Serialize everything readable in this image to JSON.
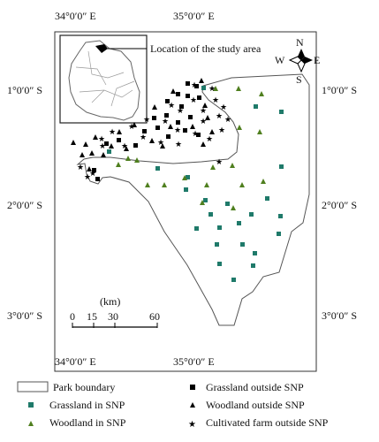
{
  "colors": {
    "grassland_snp": "#1f7a6a",
    "woodland_snp": "#4f7f1f",
    "outside": "#000000",
    "boundary": "#555555"
  },
  "top_lon_labels": [
    "34°0′0″ E",
    "35°0′0″ E"
  ],
  "bottom_lon_labels": [
    "34°0′0″ E",
    "35°0′0″ E"
  ],
  "left_lat_labels": [
    "1°0′0″ S",
    "2°0′0″ S",
    "3°0′0″ S"
  ],
  "right_lat_labels": [
    "1°0′0″ S",
    "2°0′0″ S",
    "3°0′0″ S"
  ],
  "inset_label": "Location of the study area",
  "north_arrow": {
    "n": "N",
    "s": "S",
    "e": "E",
    "w": "W"
  },
  "scale_bar": {
    "unit": "(km)",
    "ticks": [
      "0",
      "15",
      "30",
      "60"
    ]
  },
  "legend": {
    "park_boundary": "Park boundary",
    "grassland_in_snp": "Grassland in SNP",
    "woodland_in_snp": "Woodland in SNP",
    "grassland_outside_snp": "Grassland outside SNP",
    "woodland_outside_snp": "Woodland outside SNP",
    "cultivated_outside_snp": "Cultivated farm outside SNP"
  }
}
